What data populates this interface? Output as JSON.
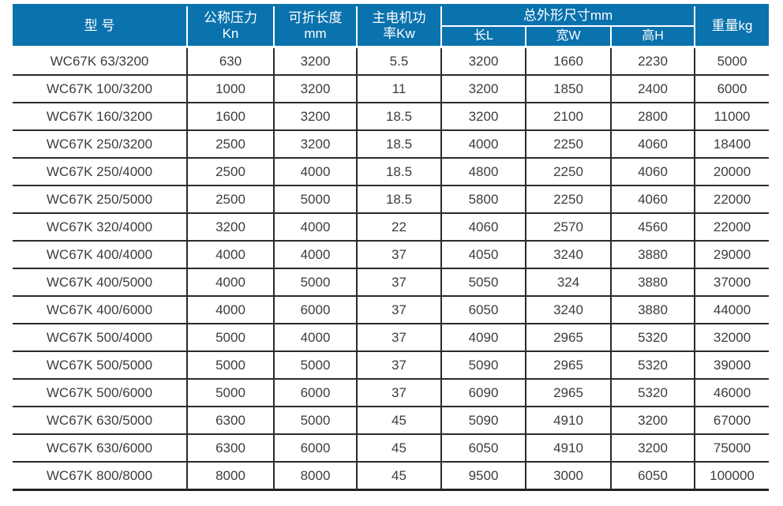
{
  "table": {
    "header": {
      "model": "型 号",
      "pressure": {
        "line1": "公称压力",
        "line2": "Kn"
      },
      "fold_length": {
        "line1": "可折长度",
        "line2": "mm"
      },
      "motor_power": {
        "line1": "主电机功",
        "line2": "率Kw"
      },
      "dimensions_group": "总外形尺寸mm",
      "dim_length": "长L",
      "dim_width": "宽W",
      "dim_height": "高H",
      "weight": "重量kg"
    },
    "columns": [
      "型 号",
      "公称压力 Kn",
      "可折长度 mm",
      "主电机功率Kw",
      "长L",
      "宽W",
      "高H",
      "重量kg"
    ],
    "rows": [
      [
        "WC67K 63/3200",
        "630",
        "3200",
        "5.5",
        "3200",
        "1660",
        "2230",
        "5000"
      ],
      [
        "WC67K 100/3200",
        "1000",
        "3200",
        "11",
        "3200",
        "1850",
        "2400",
        "6000"
      ],
      [
        "WC67K 160/3200",
        "1600",
        "3200",
        "18.5",
        "3200",
        "2100",
        "2800",
        "11000"
      ],
      [
        "WC67K 250/3200",
        "2500",
        "3200",
        "18.5",
        "4000",
        "2250",
        "4060",
        "18400"
      ],
      [
        "WC67K 250/4000",
        "2500",
        "4000",
        "18.5",
        "4800",
        "2250",
        "4060",
        "20000"
      ],
      [
        "WC67K 250/5000",
        "2500",
        "5000",
        "18.5",
        "5800",
        "2250",
        "4060",
        "22000"
      ],
      [
        "WC67K 320/4000",
        "3200",
        "4000",
        "22",
        "4060",
        "2570",
        "4560",
        "22000"
      ],
      [
        "WC67K 400/4000",
        "4000",
        "4000",
        "37",
        "4050",
        "3240",
        "3880",
        "29000"
      ],
      [
        "WC67K 400/5000",
        "4000",
        "5000",
        "37",
        "5050",
        "324",
        "3880",
        "37000"
      ],
      [
        "WC67K 400/6000",
        "4000",
        "6000",
        "37",
        "6050",
        "3240",
        "3880",
        "44000"
      ],
      [
        "WC67K 500/4000",
        "5000",
        "4000",
        "37",
        "4090",
        "2965",
        "5320",
        "32000"
      ],
      [
        "WC67K 500/5000",
        "5000",
        "5000",
        "37",
        "5090",
        "2965",
        "5320",
        "39000"
      ],
      [
        "WC67K 500/6000",
        "5000",
        "6000",
        "37",
        "6090",
        "2965",
        "5320",
        "46000"
      ],
      [
        "WC67K 630/5000",
        "6300",
        "5000",
        "45",
        "5090",
        "4910",
        "3200",
        "67000"
      ],
      [
        "WC67K 630/6000",
        "6300",
        "6000",
        "45",
        "6050",
        "4910",
        "3200",
        "75000"
      ],
      [
        "WC67K 800/8000",
        "8000",
        "8000",
        "45",
        "9500",
        "3000",
        "6050",
        "100000"
      ]
    ],
    "colors": {
      "header_bg": "#0a72ad",
      "header_text": "#ffffff",
      "body_text": "#3d3d3d",
      "grid_line": "#2b2b2b",
      "background": "#ffffff"
    }
  }
}
